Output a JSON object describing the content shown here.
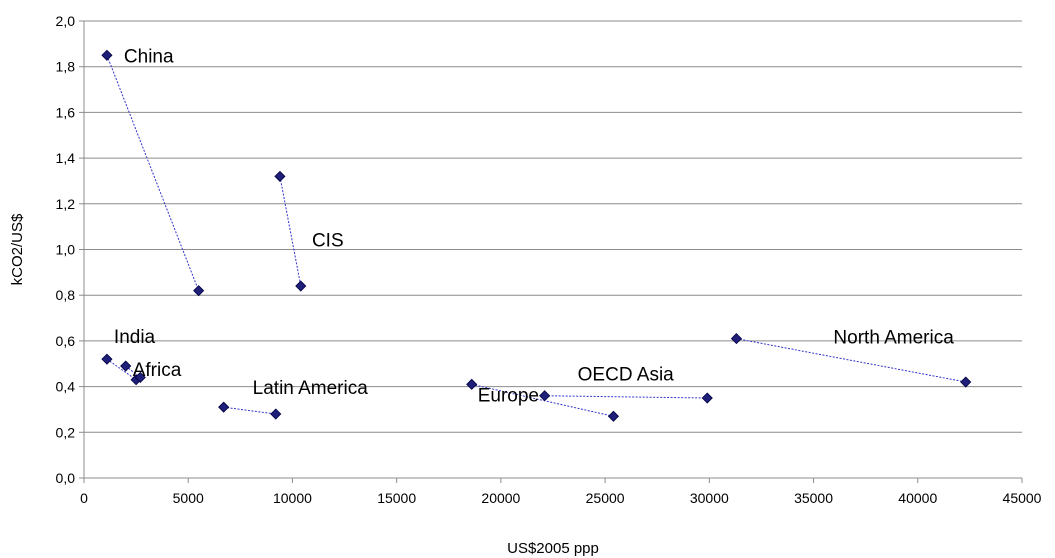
{
  "chart_data": {
    "type": "scatter",
    "xlabel": "US$2005 ppp",
    "ylabel": "kCO2/US$",
    "xlim": [
      0,
      45000
    ],
    "ylim": [
      0,
      2.0
    ],
    "x_ticks": [
      "0",
      "5000",
      "10000",
      "15000",
      "20000",
      "25000",
      "30000",
      "35000",
      "40000",
      "45000"
    ],
    "y_ticks": [
      "0,0",
      "0,2",
      "0,4",
      "0,6",
      "0,8",
      "1,0",
      "1,2",
      "1,4",
      "1,6",
      "1,8",
      "2,0"
    ],
    "grid": "horizontal",
    "marker_color": "#1f1f7a",
    "line_color": "#3333cc",
    "series": [
      {
        "name": "China",
        "points": [
          [
            1100,
            1.85
          ],
          [
            5500,
            0.82
          ]
        ]
      },
      {
        "name": "CIS",
        "points": [
          [
            9400,
            1.32
          ],
          [
            10400,
            0.84
          ]
        ]
      },
      {
        "name": "India",
        "points": [
          [
            1100,
            0.52
          ],
          [
            2500,
            0.43
          ]
        ]
      },
      {
        "name": "Africa",
        "points": [
          [
            2000,
            0.49
          ],
          [
            2700,
            0.44
          ]
        ]
      },
      {
        "name": "Latin America",
        "points": [
          [
            6700,
            0.31
          ],
          [
            9200,
            0.28
          ]
        ]
      },
      {
        "name": "Europe",
        "points": [
          [
            18600,
            0.41
          ],
          [
            25400,
            0.27
          ]
        ]
      },
      {
        "name": "OECD Asia",
        "points": [
          [
            22100,
            0.36
          ],
          [
            29900,
            0.35
          ]
        ]
      },
      {
        "name": "North America",
        "points": [
          [
            31300,
            0.61
          ],
          [
            42300,
            0.42
          ]
        ]
      }
    ]
  }
}
